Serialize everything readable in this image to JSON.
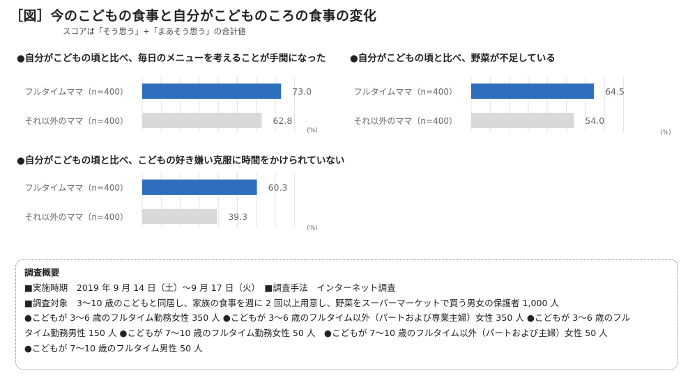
{
  "header": {
    "title": "［図］今のこどもの食事と自分がこどものころの食事の変化",
    "subtitle": "スコアは「そう思う」+「まあそう思う」の合計値"
  },
  "chart_data": [
    {
      "type": "bar",
      "title": "●自分がこどもの頃と比べ、毎日のメニューを考えることが手間になった",
      "categories": [
        "フルタイムママ（n=400）",
        "それ以外のママ（n=400）"
      ],
      "values": [
        73.0,
        62.8
      ],
      "value_labels": [
        "73.0",
        "62.8"
      ],
      "unit": "(%)",
      "xlim": [
        0,
        100
      ],
      "bar_colors": [
        "#2e6fbd",
        "#d9d9d9"
      ],
      "grid": true
    },
    {
      "type": "bar",
      "title": "●自分がこどもの頃と比べ、野菜が不足している",
      "categories": [
        "フルタイムママ（n=400）",
        "それ以外のママ（n=400）"
      ],
      "values": [
        64.5,
        54.0
      ],
      "value_labels": [
        "64.5",
        "54.0"
      ],
      "unit": "(%)",
      "xlim": [
        0,
        100
      ],
      "bar_colors": [
        "#2e6fbd",
        "#d9d9d9"
      ],
      "grid": true
    },
    {
      "type": "bar",
      "title": "●自分がこどもの頃と比べ、こどもの好き嫌い克服に時間をかけられていない",
      "categories": [
        "フルタイムママ（n=400）",
        "それ以外のママ（n=400）"
      ],
      "values": [
        60.3,
        39.3
      ],
      "value_labels": [
        "60.3",
        "39.3"
      ],
      "unit": "(%)",
      "xlim": [
        0,
        100
      ],
      "bar_colors": [
        "#2e6fbd",
        "#d9d9d9"
      ],
      "grid": true
    }
  ],
  "survey": {
    "title": "調査概要",
    "lines": [
      "■実施時期　2019 年 9 月 14 日（土）～9 月 17 日（火）　■調査手法　インターネット調査",
      "■調査対象　3～10 歳のこどもと同居し、家族の食事を週に 2 回以上用意し、野菜をスーパーマーケットで買う男女の保護者 1,000 人",
      "●こどもが 3～6 歳のフルタイム勤務女性 350 人 ●こどもが 3～6 歳のフルタイム以外（パートおよび専業主婦）女性 350 人 ●こどもが 3～6 歳のフル",
      "タイム勤務男性 150 人 ●こどもが 7～10 歳のフルタイム勤務女性 50 人　●こどもが 7～10 歳のフルタイム以外（パートおよび主婦）女性 50 人",
      "●こどもが 7～10 歳のフルタイム男性 50 人"
    ]
  }
}
